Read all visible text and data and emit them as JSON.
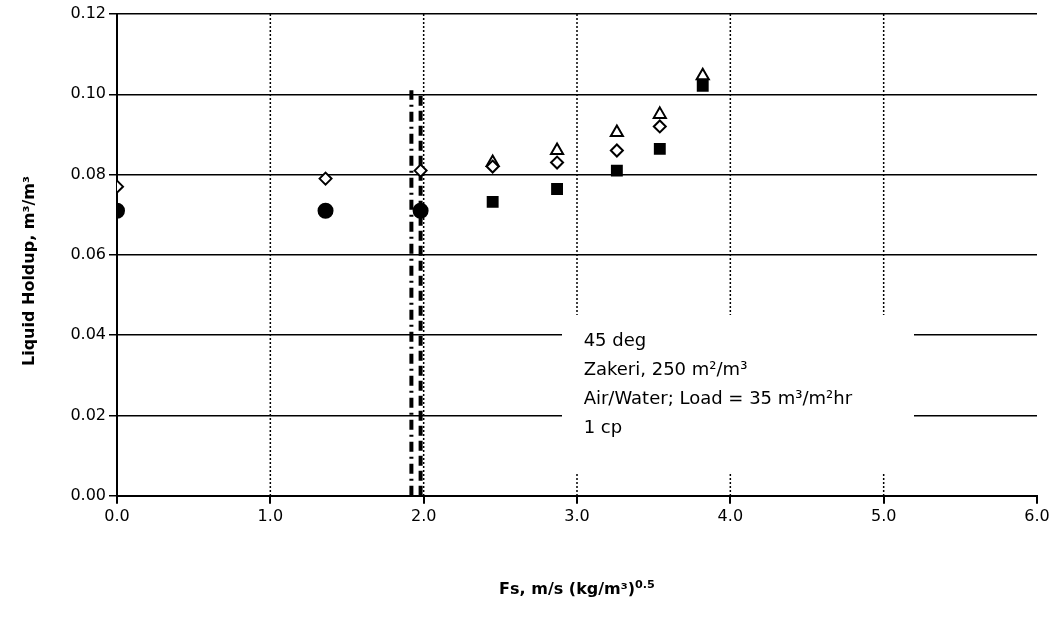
{
  "chart_data": {
    "type": "scatter",
    "xlabel": "Fs, m/s (kg/m³)$^{0.5}$",
    "ylabel": "Liquid Holdup, m³/m³",
    "xlim": [
      0,
      6
    ],
    "ylim": [
      0,
      0.12
    ],
    "xticks": [
      {
        "value": 0,
        "label": "0.0"
      },
      {
        "value": 1,
        "label": "1.0"
      },
      {
        "value": 2,
        "label": "2.0"
      },
      {
        "value": 3,
        "label": "3.0"
      },
      {
        "value": 4,
        "label": "4.0"
      },
      {
        "value": 5,
        "label": "5.0"
      },
      {
        "value": 6,
        "label": "6.0"
      }
    ],
    "yticks": [
      {
        "value": 0,
        "label": "0.00"
      },
      {
        "value": 0.02,
        "label": "0.02"
      },
      {
        "value": 0.04,
        "label": "0.04"
      },
      {
        "value": 0.06,
        "label": "0.06"
      },
      {
        "value": 0.08,
        "label": "0.08"
      },
      {
        "value": 0.1,
        "label": "0.10"
      },
      {
        "value": 0.12,
        "label": "0.12"
      }
    ],
    "grid": true,
    "legend": false,
    "series": [
      {
        "color": "#000000",
        "marker": "circle",
        "x": [
          0,
          1.36,
          1.98
        ],
        "values": [
          0.071,
          0.071,
          0.071
        ]
      },
      {
        "color": "#000000",
        "marker": "diamond",
        "x": [
          0,
          1.36,
          1.98,
          2.45,
          2.87,
          3.26,
          3.54
        ],
        "values": [
          0.077,
          0.079,
          0.081,
          0.082,
          0.083,
          0.086,
          0.092
        ]
      },
      {
        "color": "#000000",
        "marker": "triangle",
        "x": [
          2.45,
          2.87,
          3.26,
          3.54,
          3.82
        ],
        "values": [
          0.083,
          0.086,
          0.0905,
          0.095,
          0.1046
        ]
      },
      {
        "color": "#000000",
        "marker": "square",
        "x": [
          2.45,
          2.87,
          3.26,
          3.54,
          3.82
        ],
        "values": [
          0.0732,
          0.0764,
          0.081,
          0.0864,
          0.1021
        ]
      },
      {
        "type": "line",
        "color": "#000000",
        "marker": "none",
        "line_style": "dashed",
        "x": [
          1.98,
          1.98
        ],
        "values": [
          0,
          0.1
        ]
      },
      {
        "type": "line",
        "color": "#000000",
        "marker": "none",
        "line_style": "dashdot",
        "x": [
          1.92,
          1.92
        ],
        "values": [
          0,
          0.101
        ]
      }
    ],
    "annotations": [
      "45 deg",
      "Zakeri, 250 m²/m³",
      "Air/Water; Load =  35 m³/m²hr",
      "1 cp"
    ]
  }
}
